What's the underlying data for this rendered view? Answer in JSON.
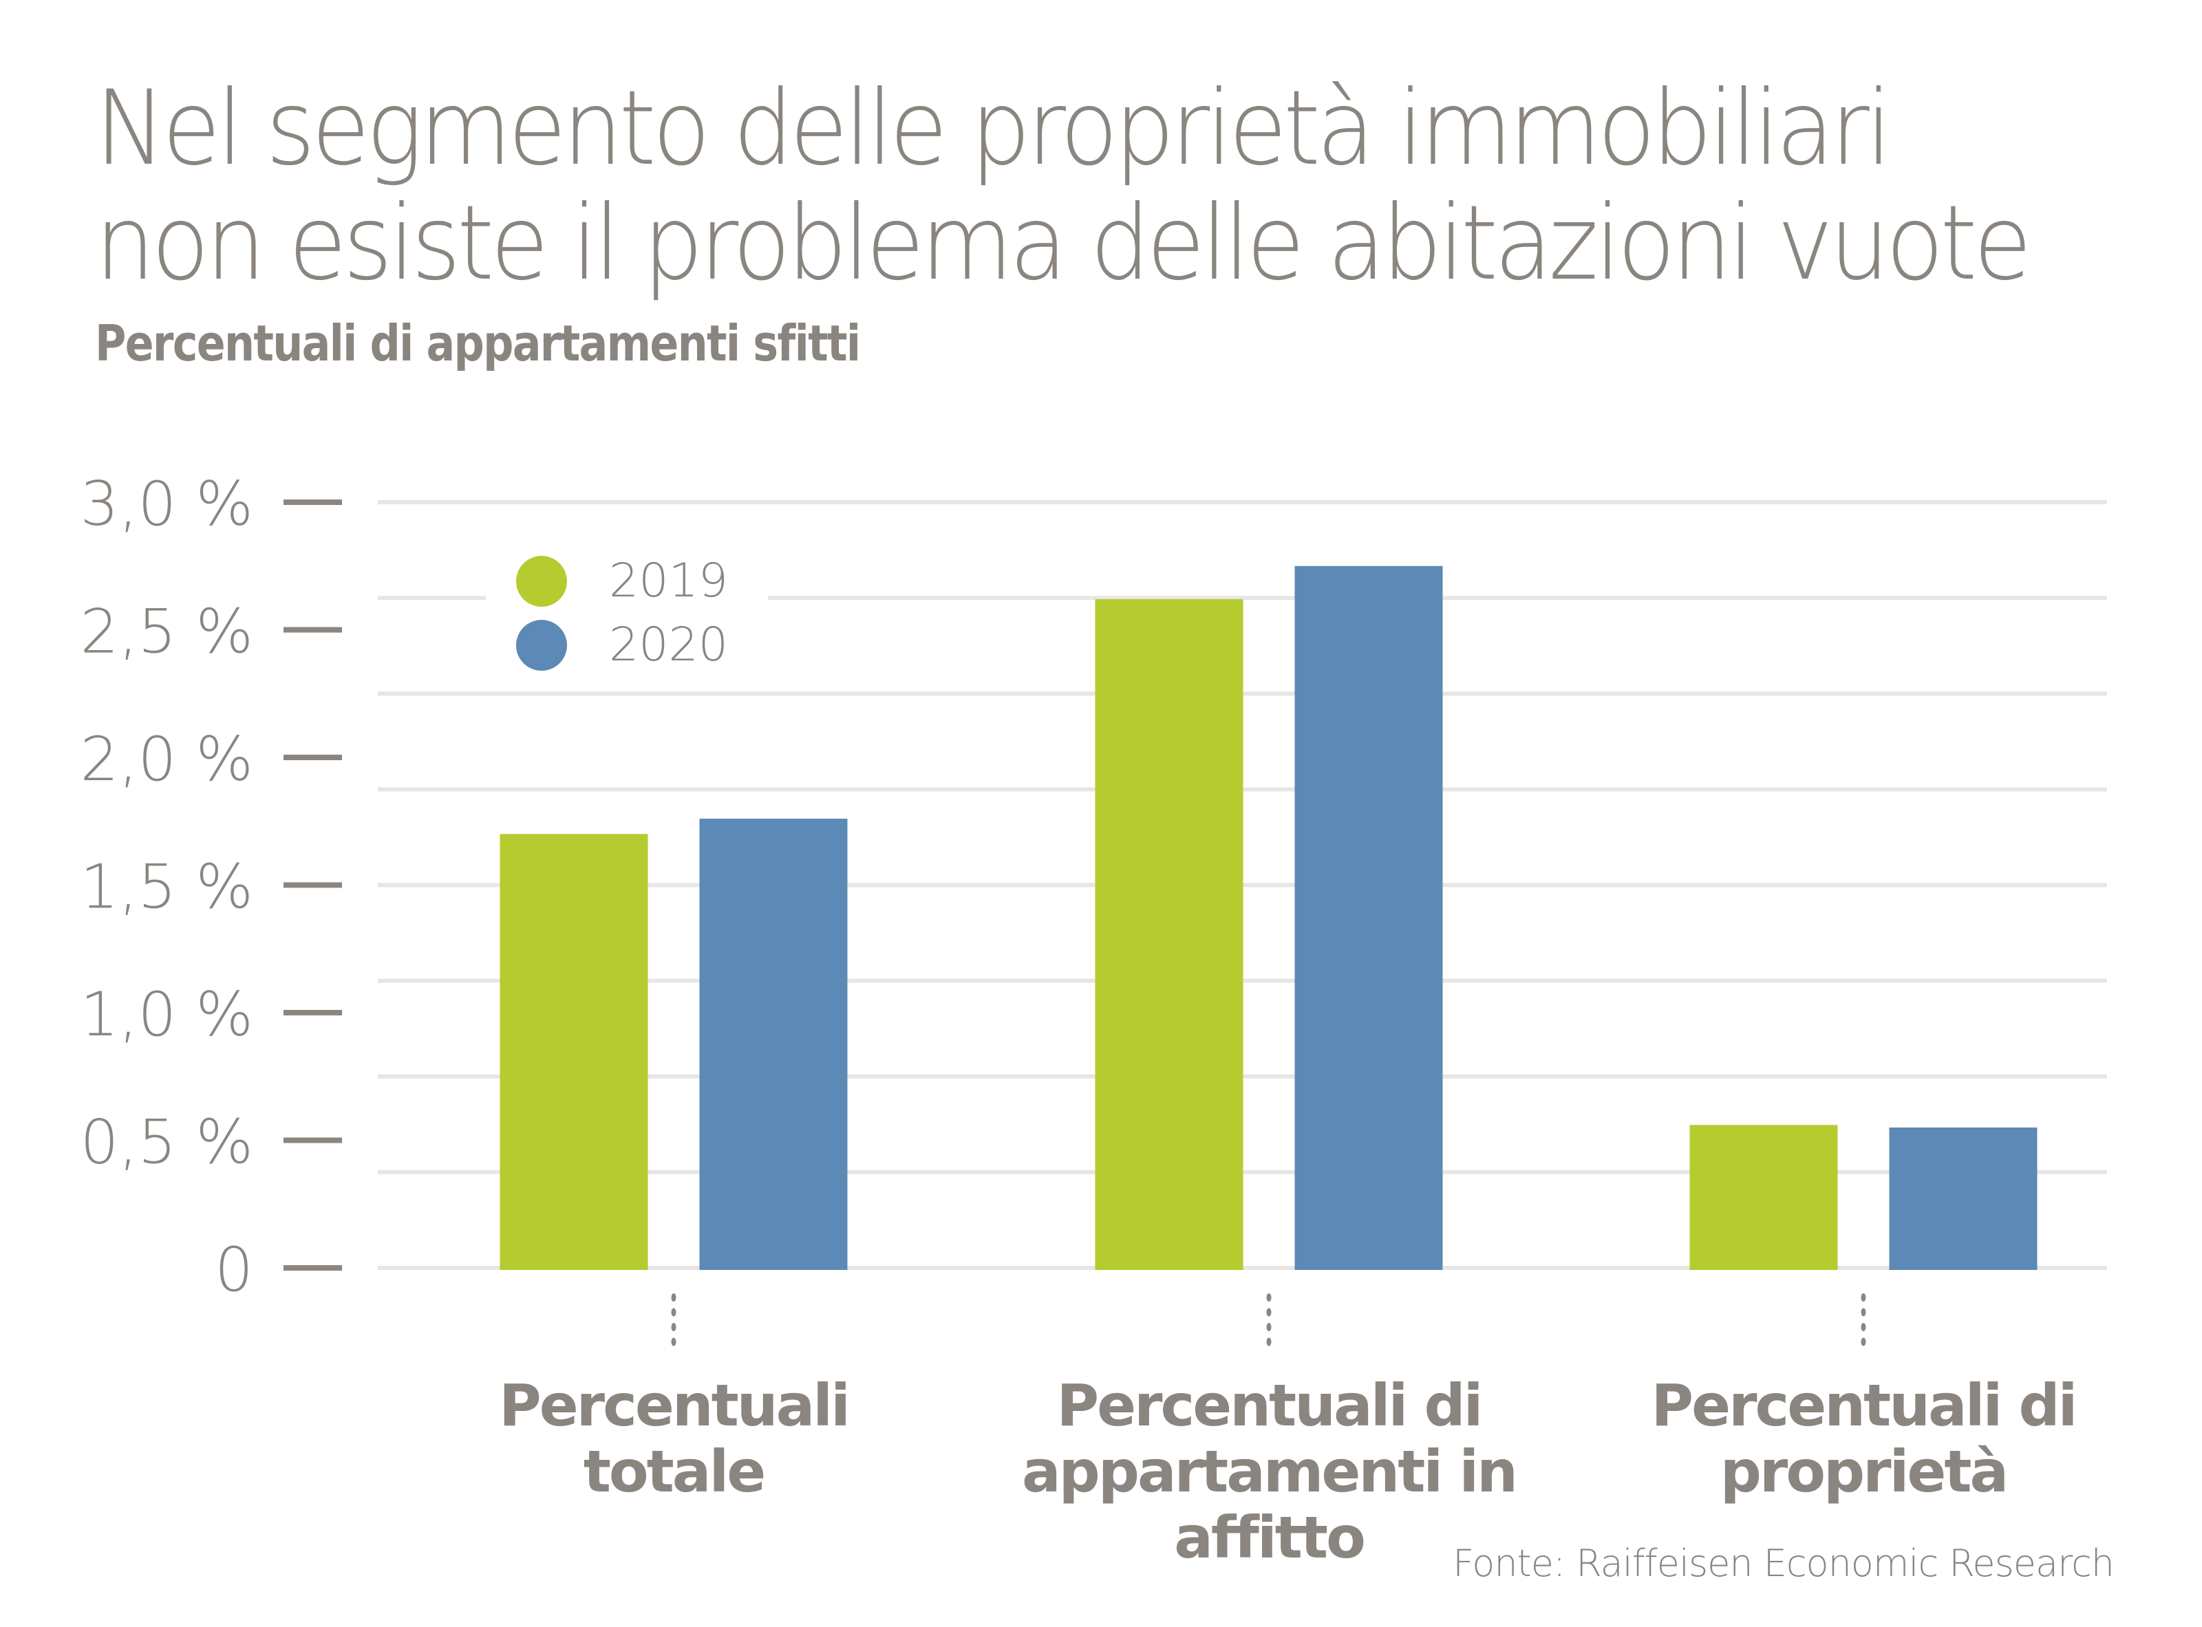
{
  "header": {
    "title_lines": [
      "Nel segmento delle proprietà immobiliari",
      "non esiste il problema delle abitazioni vuote"
    ],
    "subtitle": "Percentuali di appartamenti sfitti"
  },
  "footer": {
    "source": "Fonte: Raiffeisen Economic Research"
  },
  "chart_data": {
    "type": "bar",
    "title": "Nel segmento delle proprietà immobiliari non esiste il problema delle abitazioni vuote",
    "subtitle": "Percentuali di appartamenti sfitti",
    "xlabel": "",
    "ylabel": "",
    "categories": [
      [
        "Percentuali",
        "totale"
      ],
      [
        "Percentuali di",
        "appartamenti in",
        "affitto"
      ],
      [
        "Percentuali di",
        "proprietà"
      ]
    ],
    "series": [
      {
        "name": "2019",
        "color": "#b5cb2f",
        "values": [
          1.7,
          2.62,
          0.56
        ]
      },
      {
        "name": "2020",
        "color": "#5c89b5",
        "values": [
          1.76,
          2.75,
          0.55
        ]
      }
    ],
    "ylim": [
      0,
      3.0
    ],
    "yticks": [
      {
        "value": 3.0,
        "label": "3,0 %"
      },
      {
        "value": 2.5,
        "label": "2,5 %"
      },
      {
        "value": 2.0,
        "label": "2,0 %"
      },
      {
        "value": 1.5,
        "label": "1,5 %"
      },
      {
        "value": 1.0,
        "label": "1,0 %"
      },
      {
        "value": 0.5,
        "label": "0,5 %"
      },
      {
        "value": 0,
        "label": "0"
      }
    ],
    "gridlines": {
      "on": true,
      "count": 9
    },
    "legend": {
      "placement": "top-left",
      "entries": [
        "2019",
        "2020"
      ]
    },
    "source": "Fonte: Raiffeisen Economic Research"
  },
  "colors": {
    "text": "#8b8580",
    "grid": "#e7e6e4",
    "axis_tick": "#8b8580"
  }
}
